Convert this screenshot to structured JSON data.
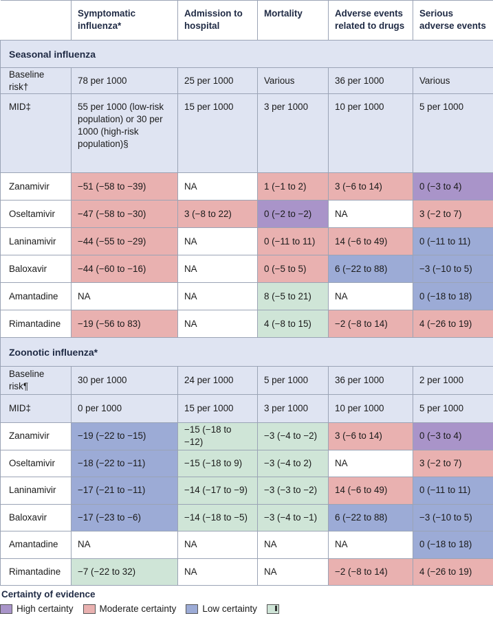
{
  "headers": [
    "",
    "Symptomatic influenza*",
    "Admission to hospital",
    "Mortality",
    "Adverse events related to drugs",
    "Serious adverse events"
  ],
  "colors": {
    "high": "#a994c9",
    "moderate": "#e9b1b0",
    "low": "#9cabd6",
    "very_low": "#cfe5d7",
    "lavender": "#dfe4f2"
  },
  "sections": [
    {
      "title": "Seasonal influenza",
      "baseline": {
        "label": "Baseline risk†",
        "cells": [
          "78 per 1000",
          "25 per 1000",
          "Various",
          "36 per 1000",
          "Various"
        ]
      },
      "mid": {
        "label": "MID‡",
        "cells": [
          "55 per 1000 (low-risk population) or 30 per 1000 (high-risk population)§",
          "15 per 1000",
          "3 per 1000",
          "10 per 1000",
          "5 per 1000"
        ]
      },
      "drugs": [
        {
          "name": "Zanamivir",
          "cells": [
            {
              "v": "−51 (−58 to −39)",
              "c": "mod"
            },
            {
              "v": "NA",
              "c": "plain"
            },
            {
              "v": "1 (−1 to 2)",
              "c": "mod"
            },
            {
              "v": "3 (−6 to 14)",
              "c": "mod"
            },
            {
              "v": "0 (−3 to 4)",
              "c": "high"
            }
          ]
        },
        {
          "name": "Oseltamivir",
          "cells": [
            {
              "v": "−47 (−58 to −30)",
              "c": "mod"
            },
            {
              "v": "3 (−8 to 22)",
              "c": "mod"
            },
            {
              "v": "0 (−2 to −2)",
              "c": "high"
            },
            {
              "v": "NA",
              "c": "plain"
            },
            {
              "v": "3 (−2 to 7)",
              "c": "mod"
            }
          ]
        },
        {
          "name": "Laninamivir",
          "cells": [
            {
              "v": "−44 (−55 to −29)",
              "c": "mod"
            },
            {
              "v": "NA",
              "c": "plain"
            },
            {
              "v": "0 (−11 to 11)",
              "c": "mod"
            },
            {
              "v": "14 (−6 to 49)",
              "c": "mod"
            },
            {
              "v": "0 (−11 to 11)",
              "c": "low"
            }
          ]
        },
        {
          "name": "Baloxavir",
          "cells": [
            {
              "v": "−44 (−60 to −16)",
              "c": "mod"
            },
            {
              "v": "NA",
              "c": "plain"
            },
            {
              "v": "0 (−5 to 5)",
              "c": "mod"
            },
            {
              "v": "6 (−22 to 88)",
              "c": "low"
            },
            {
              "v": "−3 (−10 to 5)",
              "c": "low"
            }
          ]
        },
        {
          "name": "Amantadine",
          "cells": [
            {
              "v": "NA",
              "c": "plain"
            },
            {
              "v": "NA",
              "c": "plain"
            },
            {
              "v": "8 (−5 to 21)",
              "c": "vlow"
            },
            {
              "v": "NA",
              "c": "plain"
            },
            {
              "v": "0 (−18 to 18)",
              "c": "low"
            }
          ]
        },
        {
          "name": "Rimantadine",
          "cells": [
            {
              "v": "−19 (−56 to 83)",
              "c": "mod"
            },
            {
              "v": "NA",
              "c": "plain"
            },
            {
              "v": "4 (−8 to 15)",
              "c": "vlow"
            },
            {
              "v": "−2 (−8 to 14)",
              "c": "mod"
            },
            {
              "v": "4 (−26 to 19)",
              "c": "mod"
            }
          ]
        }
      ]
    },
    {
      "title": "Zoonotic influenza*",
      "baseline": {
        "label": "Baseline risk¶",
        "cells": [
          "30 per 1000",
          "24 per 1000",
          "5 per 1000",
          "36 per 1000",
          "2 per 1000"
        ]
      },
      "mid": {
        "label": "MID‡",
        "cells": [
          "0 per 1000",
          "15 per 1000",
          "3 per 1000",
          "10 per 1000",
          "5 per 1000"
        ]
      },
      "drugs": [
        {
          "name": "Zanamivir",
          "cells": [
            {
              "v": "−19 (−22 to −15)",
              "c": "low"
            },
            {
              "v": "−15 (−18 to −12)",
              "c": "vlow"
            },
            {
              "v": "−3 (−4 to −2)",
              "c": "vlow"
            },
            {
              "v": "3 (−6 to 14)",
              "c": "mod"
            },
            {
              "v": "0 (−3 to 4)",
              "c": "high"
            }
          ]
        },
        {
          "name": "Oseltamivir",
          "cells": [
            {
              "v": "−18 (−22 to −11)",
              "c": "low"
            },
            {
              "v": "−15 (−18 to 9)",
              "c": "vlow"
            },
            {
              "v": "−3 (−4 to 2)",
              "c": "vlow"
            },
            {
              "v": "NA",
              "c": "plain"
            },
            {
              "v": "3 (−2 to 7)",
              "c": "mod"
            }
          ]
        },
        {
          "name": "Laninamivir",
          "cells": [
            {
              "v": "−17 (−21 to −11)",
              "c": "low"
            },
            {
              "v": "−14 (−17 to −9)",
              "c": "vlow"
            },
            {
              "v": "−3 (−3 to −2)",
              "c": "vlow"
            },
            {
              "v": "14 (−6 to 49)",
              "c": "mod"
            },
            {
              "v": "0 (−11 to 11)",
              "c": "low"
            }
          ]
        },
        {
          "name": "Baloxavir",
          "cells": [
            {
              "v": "−17 (−23 to −6)",
              "c": "low"
            },
            {
              "v": "−14 (−18 to −5)",
              "c": "vlow"
            },
            {
              "v": "−3 (−4 to −1)",
              "c": "vlow"
            },
            {
              "v": "6 (−22 to 88)",
              "c": "low"
            },
            {
              "v": "−3 (−10 to 5)",
              "c": "low"
            }
          ]
        },
        {
          "name": "Amantadine",
          "cells": [
            {
              "v": "NA",
              "c": "plain"
            },
            {
              "v": "NA",
              "c": "plain"
            },
            {
              "v": "NA",
              "c": "plain"
            },
            {
              "v": "NA",
              "c": "plain"
            },
            {
              "v": "0 (−18 to 18)",
              "c": "low"
            }
          ]
        },
        {
          "name": "Rimantadine",
          "cells": [
            {
              "v": "−7 (−22 to 32)",
              "c": "vlow"
            },
            {
              "v": "NA",
              "c": "plain"
            },
            {
              "v": "NA",
              "c": "plain"
            },
            {
              "v": "−2 (−8 to 14)",
              "c": "mod"
            },
            {
              "v": "4 (−26 to 19)",
              "c": "mod"
            }
          ]
        }
      ]
    }
  ],
  "legend": {
    "title": "Certainty of evidence",
    "items": [
      {
        "label": "High certainty",
        "c": "high"
      },
      {
        "label": "Moderate certainty",
        "c": "mod"
      },
      {
        "label": "Low certainty",
        "c": "low"
      },
      {
        "label": "",
        "c": "vlow"
      }
    ]
  }
}
